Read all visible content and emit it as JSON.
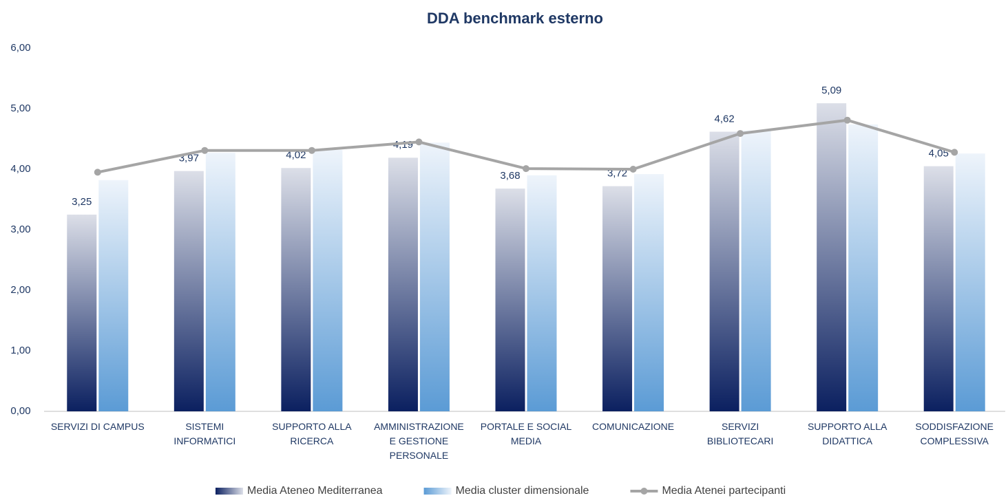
{
  "chart_data": {
    "type": "bar",
    "title": "DDA benchmark esterno",
    "categories": [
      "SERVIZI DI CAMPUS",
      "SISTEMI\nINFORMATICI",
      "SUPPORTO ALLA\nRICERCA",
      "AMMINISTRAZIONE\nE GESTIONE\nPERSONALE",
      "PORTALE E SOCIAL\nMEDIA",
      "COMUNICAZIONE",
      "SERVIZI\nBIBLIOTECARI",
      "SUPPORTO ALLA\nDIDATTICA",
      "SODDISFAZIONE\nCOMPLESSIVA"
    ],
    "series": [
      {
        "name": "Media Ateneo Mediterranea",
        "type": "bar",
        "color": "#0b2060",
        "values": [
          3.25,
          3.97,
          4.02,
          4.19,
          3.68,
          3.72,
          4.62,
          5.09,
          4.05
        ],
        "value_labels": [
          "3,25",
          "3,97",
          "4,02",
          "4,19",
          "3,68",
          "3,72",
          "4,62",
          "5,09",
          "4,05"
        ]
      },
      {
        "name": "Media cluster dimensionale",
        "type": "bar",
        "color": "#5b9bd5",
        "values": [
          3.82,
          4.27,
          4.32,
          4.44,
          3.9,
          3.92,
          4.64,
          4.74,
          4.26
        ]
      },
      {
        "name": "Media Atenei partecipanti",
        "type": "line",
        "color": "#a5a5a5",
        "values": [
          3.95,
          4.31,
          4.31,
          4.45,
          4.01,
          4.0,
          4.59,
          4.81,
          4.28
        ]
      }
    ],
    "ylim": [
      0,
      6
    ],
    "yticks": [
      {
        "value": 0,
        "label": "0,00"
      },
      {
        "value": 1,
        "label": "1,00"
      },
      {
        "value": 2,
        "label": "2,00"
      },
      {
        "value": 3,
        "label": "3,00"
      },
      {
        "value": 4,
        "label": "4,00"
      },
      {
        "value": 5,
        "label": "5,00"
      },
      {
        "value": 6,
        "label": "6,00"
      }
    ],
    "grid": false,
    "legend": "bottom"
  }
}
